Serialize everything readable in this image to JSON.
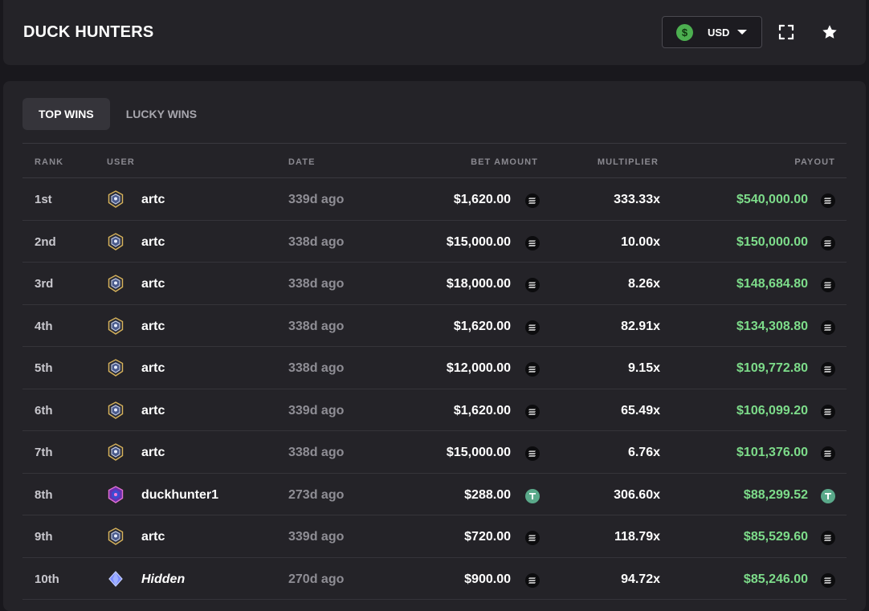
{
  "header": {
    "title": "DUCK HUNTERS",
    "currency": {
      "symbol": "$",
      "label": "USD",
      "icon": "dollar-coin-icon"
    },
    "icons": [
      "fullscreen-icon",
      "star-icon"
    ]
  },
  "tabs": [
    {
      "label": "TOP WINS",
      "active": true
    },
    {
      "label": "LUCKY WINS",
      "active": false
    }
  ],
  "columns": {
    "rank": "RANK",
    "user": "USER",
    "date": "DATE",
    "bet": "BET AMOUNT",
    "multiplier": "MULTIPLIER",
    "payout": "PAYOUT"
  },
  "rows": [
    {
      "rank": "1st",
      "user": "artc",
      "avatar": "shield-avatar-icon",
      "date": "339d ago",
      "bet": "$1,620.00",
      "multiplier": "333.33x",
      "payout": "$540,000.00",
      "token": "sol"
    },
    {
      "rank": "2nd",
      "user": "artc",
      "avatar": "shield-avatar-icon",
      "date": "338d ago",
      "bet": "$15,000.00",
      "multiplier": "10.00x",
      "payout": "$150,000.00",
      "token": "sol"
    },
    {
      "rank": "3rd",
      "user": "artc",
      "avatar": "shield-avatar-icon",
      "date": "338d ago",
      "bet": "$18,000.00",
      "multiplier": "8.26x",
      "payout": "$148,684.80",
      "token": "sol"
    },
    {
      "rank": "4th",
      "user": "artc",
      "avatar": "shield-avatar-icon",
      "date": "338d ago",
      "bet": "$1,620.00",
      "multiplier": "82.91x",
      "payout": "$134,308.80",
      "token": "sol"
    },
    {
      "rank": "5th",
      "user": "artc",
      "avatar": "shield-avatar-icon",
      "date": "338d ago",
      "bet": "$12,000.00",
      "multiplier": "9.15x",
      "payout": "$109,772.80",
      "token": "sol"
    },
    {
      "rank": "6th",
      "user": "artc",
      "avatar": "shield-avatar-icon",
      "date": "339d ago",
      "bet": "$1,620.00",
      "multiplier": "65.49x",
      "payout": "$106,099.20",
      "token": "sol"
    },
    {
      "rank": "7th",
      "user": "artc",
      "avatar": "shield-avatar-icon",
      "date": "338d ago",
      "bet": "$15,000.00",
      "multiplier": "6.76x",
      "payout": "$101,376.00",
      "token": "sol"
    },
    {
      "rank": "8th",
      "user": "duckhunter1",
      "avatar": "purple-gem-avatar-icon",
      "date": "273d ago",
      "bet": "$288.00",
      "multiplier": "306.60x",
      "payout": "$88,299.52",
      "token": "usdt"
    },
    {
      "rank": "9th",
      "user": "artc",
      "avatar": "shield-avatar-icon",
      "date": "339d ago",
      "bet": "$720.00",
      "multiplier": "118.79x",
      "payout": "$85,529.60",
      "token": "sol"
    },
    {
      "rank": "10th",
      "user": "Hidden",
      "avatar": "blue-gem-avatar-icon",
      "date": "270d ago",
      "bet": "$900.00",
      "multiplier": "94.72x",
      "payout": "$85,246.00",
      "token": "sol",
      "hidden": true
    }
  ],
  "colors": {
    "payout": "#7ddc8a",
    "accent_green": "#4caf50",
    "usdt": "#5aa98a"
  }
}
